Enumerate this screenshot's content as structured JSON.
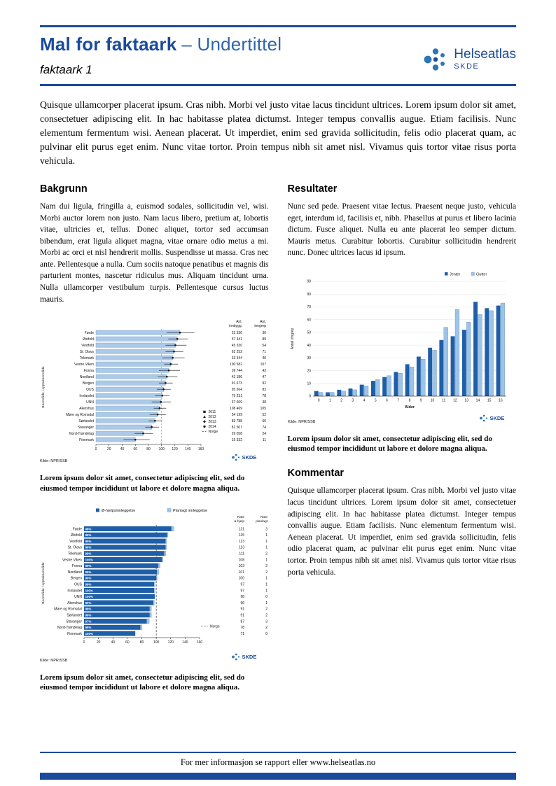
{
  "header": {
    "title_main": "Mal for faktaark",
    "title_sub": "– Undertittel",
    "subtitle": "faktaark 1",
    "logo_name": "Helseatlas",
    "logo_org": "SKDE"
  },
  "intro": "Quisque ullamcorper placerat ipsum. Cras nibh. Morbi vel justo vitae lacus tincidunt ultrices. Lorem ipsum dolor sit amet, consectetuer adipiscing elit. In hac habitasse platea dictumst. Integer tempus convallis augue. Etiam facilisis. Nunc elementum fermentum wisi. Aenean placerat. Ut imperdiet, enim sed gravida sollicitudin, felis odio placerat quam, ac pulvinar elit purus eget enim. Nunc vitae tortor. Proin tempus nibh sit amet nisl. Vivamus quis tortor vitae risus porta vehicula.",
  "sections": {
    "bakgrunn": {
      "heading": "Bakgrunn",
      "body": "Nam dui ligula, fringilla a, euismod sodales, sollicitudin vel, wisi. Morbi auctor lorem non justo. Nam lacus libero, pretium at, lobortis vitae, ultricies et, tellus. Donec aliquet, tortor sed accumsan bibendum, erat ligula aliquet magna, vitae ornare odio metus a mi. Morbi ac orci et nisl hendrerit mollis. Suspendisse ut massa. Cras nec ante. Pellentesque a nulla. Cum sociis natoque penatibus et magnis dis parturient montes, nascetur ridiculus mus. Aliquam tincidunt urna. Nulla ullamcorper vestibulum turpis. Pellentesque cursus luctus mauris."
    },
    "resultater": {
      "heading": "Resultater",
      "body": "Nunc sed pede. Praesent vitae lectus. Praesent neque justo, vehicula eget, interdum id, facilisis et, nibh. Phasellus at purus et libero lacinia dictum. Fusce aliquet. Nulla eu ante placerat leo semper dictum. Mauris metus. Curabitur lobortis. Curabitur sollicitudin hendrerit nunc. Donec ultrices lacus id ipsum."
    },
    "kommentar": {
      "heading": "Kommentar",
      "body": "Quisque ullamcorper placerat ipsum. Cras nibh. Morbi vel justo vitae lacus tincidunt ultrices. Lorem ipsum dolor sit amet, consectetuer adipiscing elit. In hac habitasse platea dictumst. Integer tempus convallis augue. Etiam facilisis. Nunc elementum fermentum wisi. Aenean placerat. Ut imperdiet, enim sed gravida sollicitudin, felis odio placerat quam, ac pulvinar elit purus eget enim. Nunc vitae tortor. Proin tempus nibh sit amet nisl. Vivamus quis tortor vitae risus porta vehicula."
    }
  },
  "captions": {
    "chart1": "Lorem ipsum dolor sit amet, consectetur adipiscing elit, sed do eiusmod tempor incididunt ut labore et dolore magna aliqua.",
    "chart2": "Lorem ipsum dolor sit amet, consectetur adipiscing elit, sed do eiusmod tempor incididunt ut labore et dolore magna aliqua.",
    "chart3": "Lorem ipsum dolor sit amet, consectetur adipiscing elit, sed do eiusmod tempor incididunt ut labore et dolore magna aliqua."
  },
  "footer": {
    "text": "For mer informasjon se rapport eller www.helseatlas.no"
  },
  "chart_data": [
    {
      "id": "population-chart",
      "type": "bar",
      "orientation": "horizontal",
      "axis_label": "Boområde / opptaksområde",
      "xlim": [
        0,
        160
      ],
      "xticks": [
        0,
        20,
        40,
        60,
        80,
        100,
        120,
        140,
        160
      ],
      "reference_line": 100,
      "columns": [
        "Ant. innbygg.",
        "Ant. inngrep"
      ],
      "legend": [
        "2011",
        "2012",
        "2013",
        "2014",
        "Norge"
      ],
      "source": "Kilde: NPR/SSB",
      "rows": [
        {
          "label": "Førde",
          "rate": 128,
          "lo": 108,
          "hi": 150,
          "innbygg": "23 330",
          "inngrep": 30
        },
        {
          "label": "Østfold",
          "rate": 124,
          "lo": 110,
          "hi": 140,
          "innbygg": "57 341",
          "inngrep": 89
        },
        {
          "label": "Vestfold",
          "rate": 121,
          "lo": 106,
          "hi": 138,
          "innbygg": "45 330",
          "inngrep": 54
        },
        {
          "label": "St. Olavs",
          "rate": 119,
          "lo": 106,
          "hi": 133,
          "innbygg": "62 252",
          "inngrep": 71
        },
        {
          "label": "Telemark",
          "rate": 117,
          "lo": 101,
          "hi": 135,
          "innbygg": "33 344",
          "inngrep": 40
        },
        {
          "label": "Vestre Viken",
          "rate": 114,
          "lo": 104,
          "hi": 125,
          "innbygg": "100 582",
          "inngrep": 107
        },
        {
          "label": "Fonna",
          "rate": 111,
          "lo": 96,
          "hi": 128,
          "innbygg": "39 744",
          "inngrep": 43
        },
        {
          "label": "Nordland",
          "rate": 108,
          "lo": 94,
          "hi": 124,
          "innbygg": "43 186",
          "inngrep": 47
        },
        {
          "label": "Bergen",
          "rate": 106,
          "lo": 96,
          "hi": 117,
          "innbygg": "91 673",
          "inngrep": 92
        },
        {
          "label": "OUS",
          "rate": 103,
          "lo": 93,
          "hi": 114,
          "innbygg": "95 564",
          "inngrep": 82
        },
        {
          "label": "Innlandet",
          "rate": 101,
          "lo": 90,
          "hi": 112,
          "innbygg": "75 231",
          "inngrep": 78
        },
        {
          "label": "UNN",
          "rate": 99,
          "lo": 85,
          "hi": 114,
          "innbygg": "37 609",
          "inngrep": 38
        },
        {
          "label": "Akershus",
          "rate": 97,
          "lo": 88,
          "hi": 107,
          "innbygg": "108 469",
          "inngrep": 105
        },
        {
          "label": "Møre og Romsdal",
          "rate": 94,
          "lo": 82,
          "hi": 107,
          "innbygg": "54 199",
          "inngrep": 52
        },
        {
          "label": "Sørlandet",
          "rate": 90,
          "lo": 80,
          "hi": 101,
          "innbygg": "83 788",
          "inngrep": 60
        },
        {
          "label": "Stavanger",
          "rate": 85,
          "lo": 75,
          "hi": 96,
          "innbygg": "81 507",
          "inngrep": 74
        },
        {
          "label": "Nord-Trøndelag",
          "rate": 72,
          "lo": 59,
          "hi": 87,
          "innbygg": "29 058",
          "inngrep": 24
        },
        {
          "label": "Finnmark",
          "rate": 60,
          "lo": 42,
          "hi": 82,
          "innbygg": "15 332",
          "inngrep": 11
        }
      ]
    },
    {
      "id": "admission-rate-chart",
      "type": "stacked-bar",
      "orientation": "horizontal",
      "axis_label": "Boområde / opptaksområde",
      "xlim": [
        0,
        160
      ],
      "xticks": [
        0,
        20,
        40,
        60,
        80,
        100,
        120,
        140,
        160
      ],
      "reference_line": 100,
      "ref_label": "Norge",
      "legend": [
        "Ø-hjelpsinnleggelse",
        "Planlagt innleggelse"
      ],
      "colors": [
        "#1f5fa8",
        "#9dc3e6"
      ],
      "columns": [
        "Rate ø-hjelp",
        "Rate planlagt"
      ],
      "source": "Kilde: NPR/SSB",
      "rows": [
        {
          "label": "Førde",
          "pct": "98%",
          "rate": 121,
          "planlagt": 3
        },
        {
          "label": "Østfold",
          "pct": "99%",
          "rate": 115,
          "planlagt": 1
        },
        {
          "label": "Vestfold",
          "pct": "99%",
          "rate": 113,
          "planlagt": 1
        },
        {
          "label": "St. Olavs",
          "pct": "99%",
          "rate": 113,
          "planlagt": 1
        },
        {
          "label": "Telemark",
          "pct": "99%",
          "rate": 111,
          "planlagt": 2
        },
        {
          "label": "Vestre Viken",
          "pct": "100%",
          "rate": 108,
          "planlagt": 1
        },
        {
          "label": "Fonna",
          "pct": "99%",
          "rate": 103,
          "planlagt": 2
        },
        {
          "label": "Nordland",
          "pct": "99%",
          "rate": 101,
          "planlagt": 2
        },
        {
          "label": "Bergen",
          "pct": "99%",
          "rate": 100,
          "planlagt": 1
        },
        {
          "label": "OUS",
          "pct": "99%",
          "rate": 97,
          "planlagt": 1
        },
        {
          "label": "Innlandet",
          "pct": "100%",
          "rate": 97,
          "planlagt": 1
        },
        {
          "label": "UNN",
          "pct": "100%",
          "rate": 98,
          "planlagt": 0
        },
        {
          "label": "Akershus",
          "pct": "99%",
          "rate": 96,
          "planlagt": 1
        },
        {
          "label": "Møre og Romsdal",
          "pct": "98%",
          "rate": 91,
          "planlagt": 2
        },
        {
          "label": "Sørlandet",
          "pct": "99%",
          "rate": 91,
          "planlagt": 2
        },
        {
          "label": "Stavanger",
          "pct": "97%",
          "rate": 87,
          "planlagt": 3
        },
        {
          "label": "Nord-Trøndelag",
          "pct": "98%",
          "rate": 78,
          "planlagt": 2
        },
        {
          "label": "Finnmark",
          "pct": "100%",
          "rate": 71,
          "planlagt": 0
        }
      ]
    },
    {
      "id": "age-distribution-chart",
      "type": "grouped-bar",
      "orientation": "vertical",
      "xlabel": "Alder",
      "ylabel": "Antall inngrep",
      "ylim": [
        0,
        90
      ],
      "yticks": [
        0,
        10,
        20,
        30,
        40,
        50,
        60,
        70,
        80,
        90
      ],
      "colors": [
        "#1f5fa8",
        "#9dc3e6"
      ],
      "categories": [
        "0",
        "1",
        "2",
        "3",
        "4",
        "5",
        "6",
        "7",
        "8",
        "9",
        "10",
        "11",
        "12",
        "13",
        "14",
        "15",
        "16"
      ],
      "series": [
        {
          "name": "Jenter",
          "values": [
            4,
            3,
            5,
            6,
            9,
            12,
            15,
            19,
            25,
            31,
            38,
            44,
            47,
            52,
            74,
            69,
            71
          ]
        },
        {
          "name": "Gutter",
          "values": [
            3,
            3,
            4,
            5,
            8,
            13,
            16,
            18,
            23,
            29,
            36,
            54,
            68,
            58,
            64,
            67,
            73
          ]
        }
      ],
      "source": "Kilde: NPR/SSB"
    }
  ]
}
